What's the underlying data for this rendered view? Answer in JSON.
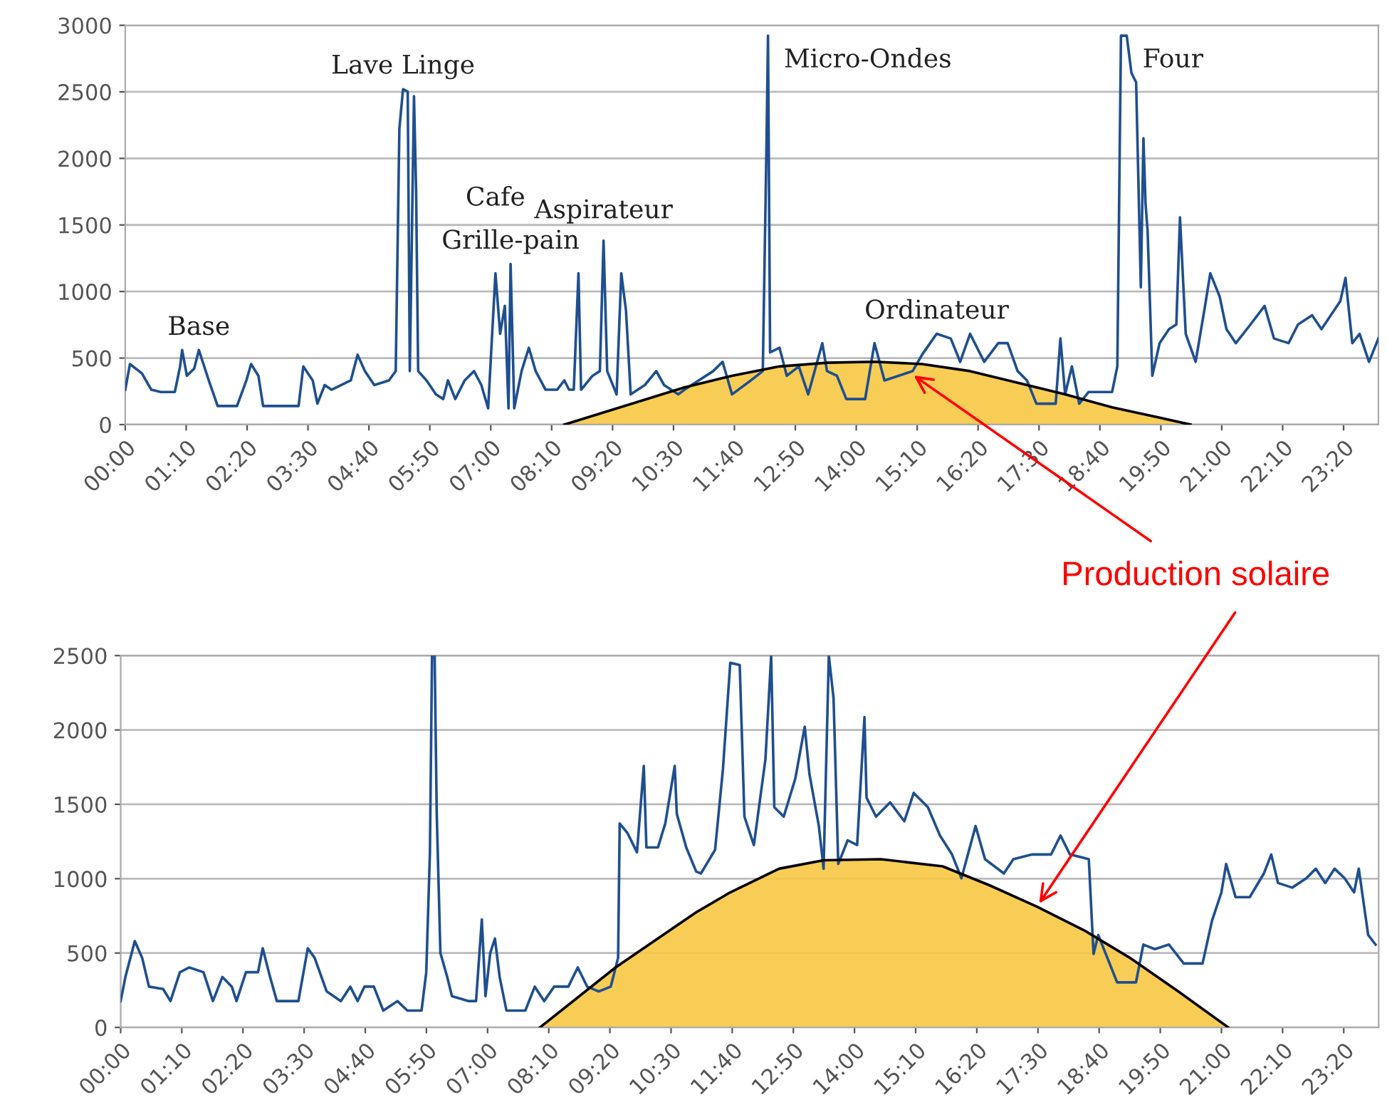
{
  "chart_data": [
    {
      "type": "line",
      "xlim": [
        0,
        24
      ],
      "ylim": [
        0,
        3000
      ],
      "yticks": [
        0,
        500,
        1000,
        1500,
        2000,
        2500,
        3000
      ],
      "xticks": [
        {
          "value": 0,
          "label": "00:00"
        },
        {
          "value": 1.1667,
          "label": "01:10"
        },
        {
          "value": 2.3333,
          "label": "02:20"
        },
        {
          "value": 3.5,
          "label": "03:30"
        },
        {
          "value": 4.6667,
          "label": "04:40"
        },
        {
          "value": 5.8333,
          "label": "05:50"
        },
        {
          "value": 7,
          "label": "07:00"
        },
        {
          "value": 8.1667,
          "label": "08:10"
        },
        {
          "value": 9.3333,
          "label": "09:20"
        },
        {
          "value": 10.5,
          "label": "10:30"
        },
        {
          "value": 11.6667,
          "label": "11:40"
        },
        {
          "value": 12.8333,
          "label": "12:50"
        },
        {
          "value": 14,
          "label": "14:00"
        },
        {
          "value": 15.1667,
          "label": "15:10"
        },
        {
          "value": 16.3333,
          "label": "16:20"
        },
        {
          "value": 17.5,
          "label": "17:30"
        },
        {
          "value": 18.6667,
          "label": "18:40"
        },
        {
          "value": 19.8333,
          "label": "19:50"
        },
        {
          "value": 21,
          "label": "21:00"
        },
        {
          "value": 22.1667,
          "label": "22:10"
        },
        {
          "value": 23.3333,
          "label": "23:20"
        }
      ],
      "grid": "y",
      "legend": false,
      "marker": "none",
      "line_style": "solid",
      "series": [
        {
          "type": "area",
          "color": "#f7c844",
          "x": [
            8.41,
            10.71,
            11.62,
            12.53,
            13.44,
            14.35,
            15.26,
            16.18,
            17.09,
            18.0,
            18.9,
            19.81,
            20.4
          ],
          "values": [
            0,
            280,
            367,
            437,
            465,
            472,
            455,
            402,
            315,
            227,
            130,
            52,
            0
          ]
        },
        {
          "color": "#1f4f8f",
          "x": [
            0,
            0.09,
            0.32,
            0.5,
            0.68,
            0.95,
            1.05,
            1.09,
            1.18,
            1.32,
            1.41,
            1.6,
            1.77,
            2.14,
            2.32,
            2.41,
            2.55,
            2.64,
            3.32,
            3.41,
            3.59,
            3.68,
            3.82,
            3.95,
            4.32,
            4.45,
            4.59,
            4.77,
            5.05,
            5.18,
            5.25,
            5.32,
            5.41,
            5.45,
            5.53,
            5.57,
            5.61,
            5.77,
            5.95,
            6.09,
            6.18,
            6.32,
            6.5,
            6.68,
            6.82,
            6.95,
            7.09,
            7.18,
            7.27,
            7.34,
            7.38,
            7.45,
            7.59,
            7.73,
            7.86,
            8.05,
            8.27,
            8.41,
            8.5,
            8.59,
            8.68,
            8.73,
            8.95,
            9.09,
            9.16,
            9.23,
            9.41,
            9.5,
            9.59,
            9.68,
            9.95,
            10.17,
            10.32,
            10.59,
            10.71,
            11.26,
            11.44,
            11.62,
            11.98,
            12.21,
            12.28,
            12.31,
            12.35,
            12.53,
            12.67,
            12.9,
            13.08,
            13.35,
            13.44,
            13.63,
            13.81,
            14.17,
            14.35,
            14.54,
            14.81,
            15.08,
            15.26,
            15.54,
            15.81,
            15.99,
            16.18,
            16.45,
            16.72,
            16.9,
            17.09,
            17.27,
            17.45,
            17.82,
            17.91,
            18.0,
            18.13,
            18.27,
            18.45,
            18.9,
            19.0,
            19.07,
            19.18,
            19.27,
            19.36,
            19.45,
            19.5,
            19.54,
            19.58,
            19.67,
            19.81,
            19.99,
            20.13,
            20.2,
            20.31,
            20.5,
            20.68,
            20.78,
            20.96,
            21.09,
            21.27,
            21.55,
            21.82,
            22.0,
            22.28,
            22.46,
            22.73,
            22.91,
            23.27,
            23.37,
            23.5,
            23.64,
            23.82,
            24.0
          ],
          "values": [
            262,
            455,
            385,
            262,
            245,
            245,
            437,
            560,
            367,
            420,
            560,
            332,
            140,
            140,
            332,
            455,
            367,
            140,
            140,
            437,
            332,
            157,
            297,
            262,
            332,
            525,
            402,
            297,
            332,
            402,
            2222,
            2520,
            2502,
            402,
            2467,
            1767,
            402,
            332,
            227,
            192,
            332,
            192,
            332,
            402,
            297,
            122,
            1137,
            682,
            892,
            122,
            1207,
            122,
            402,
            577,
            402,
            262,
            262,
            332,
            262,
            262,
            1137,
            262,
            367,
            402,
            1382,
            402,
            227,
            1137,
            857,
            227,
            297,
            402,
            297,
            227,
            262,
            402,
            472,
            227,
            332,
            402,
            2082,
            2922,
            542,
            577,
            367,
            437,
            227,
            612,
            402,
            367,
            192,
            192,
            612,
            332,
            367,
            402,
            525,
            682,
            647,
            472,
            682,
            472,
            612,
            612,
            402,
            332,
            157,
            157,
            647,
            227,
            437,
            157,
            245,
            245,
            437,
            2922,
            2922,
            2642,
            2572,
            1032,
            2152,
            1662,
            1452,
            367,
            612,
            717,
            752,
            1557,
            682,
            472,
            892,
            1137,
            962,
            717,
            612,
            752,
            892,
            647,
            612,
            752,
            822,
            717,
            927,
            1102,
            612,
            682,
            472,
            647
          ]
        }
      ],
      "annotations": [
        {
          "text": "Base",
          "x": 1.41,
          "y": 560
        },
        {
          "text": "Lave Linge",
          "x": 5.32,
          "y": 2520
        },
        {
          "text": "Grille-pain",
          "x": 7.38,
          "y": 1207
        },
        {
          "text": "Cafe",
          "x": 7.09,
          "y": 1137
        },
        {
          "text": "Aspirateur",
          "x": 9.16,
          "y": 1382
        },
        {
          "text": "Micro-Ondes",
          "x": 12.31,
          "y": 2922
        },
        {
          "text": "Ordinateur",
          "x": 15.54,
          "y": 682
        },
        {
          "text": "Four",
          "x": 19.18,
          "y": 2922
        },
        {
          "text": "Production solaire",
          "x": 15.04,
          "y": 386
        }
      ]
    },
    {
      "type": "line",
      "xlim": [
        0,
        24
      ],
      "ylim": [
        0,
        2500
      ],
      "yticks": [
        0,
        500,
        1000,
        1500,
        2000,
        2500
      ],
      "xticks": [
        {
          "value": 0,
          "label": "00:00"
        },
        {
          "value": 1.1667,
          "label": "01:10"
        },
        {
          "value": 2.3333,
          "label": "02:20"
        },
        {
          "value": 3.5,
          "label": "03:30"
        },
        {
          "value": 4.6667,
          "label": "04:40"
        },
        {
          "value": 5.8333,
          "label": "05:50"
        },
        {
          "value": 7,
          "label": "07:00"
        },
        {
          "value": 8.1667,
          "label": "08:10"
        },
        {
          "value": 9.3333,
          "label": "09:20"
        },
        {
          "value": 10.5,
          "label": "10:30"
        },
        {
          "value": 11.6667,
          "label": "11:40"
        },
        {
          "value": 12.8333,
          "label": "12:50"
        },
        {
          "value": 14,
          "label": "14:00"
        },
        {
          "value": 15.1667,
          "label": "15:10"
        },
        {
          "value": 16.3333,
          "label": "16:20"
        },
        {
          "value": 17.5,
          "label": "17:30"
        },
        {
          "value": 18.6667,
          "label": "18:40"
        },
        {
          "value": 19.8333,
          "label": "19:50"
        },
        {
          "value": 21,
          "label": "21:00"
        },
        {
          "value": 22.1667,
          "label": "22:10"
        },
        {
          "value": 23.3333,
          "label": "23:20"
        }
      ],
      "grid": "y",
      "legend": false,
      "marker": "none",
      "line_style": "solid",
      "series": [
        {
          "type": "area",
          "color": "#f7c844",
          "x": [
            8.0,
            9.44,
            10.98,
            11.63,
            12.56,
            13.41,
            14.5,
            15.68,
            16.58,
            17.48,
            18.38,
            19.28,
            20.19,
            21.13
          ],
          "values": [
            0,
            403,
            774,
            908,
            1067,
            1124,
            1131,
            1083,
            955,
            812,
            653,
            462,
            239,
            0
          ]
        },
        {
          "color": "#1f4f8f",
          "x": [
            0,
            0.09,
            0.27,
            0.41,
            0.54,
            0.81,
            0.95,
            1.13,
            1.31,
            1.58,
            1.76,
            1.94,
            2.12,
            2.21,
            2.39,
            2.62,
            2.71,
            2.85,
            2.98,
            3.39,
            3.57,
            3.7,
            3.93,
            4.2,
            4.38,
            4.52,
            4.65,
            4.83,
            5.01,
            5.28,
            5.47,
            5.74,
            5.83,
            5.9,
            5.94,
            5.99,
            6.03,
            6.1,
            6.23,
            6.32,
            6.64,
            6.78,
            6.89,
            6.96,
            7.05,
            7.14,
            7.23,
            7.36,
            7.72,
            7.9,
            8.08,
            8.27,
            8.54,
            8.72,
            8.9,
            9.12,
            9.35,
            9.49,
            9.52,
            9.67,
            9.85,
            9.98,
            10.03,
            10.25,
            10.39,
            10.57,
            10.61,
            10.79,
            10.98,
            11.07,
            11.34,
            11.49,
            11.63,
            11.81,
            11.9,
            12.08,
            12.3,
            12.41,
            12.47,
            12.65,
            12.87,
            13.05,
            13.14,
            13.32,
            13.41,
            13.51,
            13.6,
            13.69,
            13.87,
            14.05,
            14.19,
            14.23,
            14.41,
            14.68,
            14.95,
            15.13,
            15.4,
            15.63,
            15.86,
            16.04,
            16.31,
            16.49,
            16.85,
            17.03,
            17.39,
            17.75,
            17.93,
            18.11,
            18.47,
            18.56,
            18.65,
            18.83,
            19.01,
            19.37,
            19.51,
            19.73,
            20.0,
            20.28,
            20.64,
            20.82,
            21.0,
            21.09,
            21.27,
            21.54,
            21.81,
            21.95,
            22.08,
            22.35,
            22.62,
            22.8,
            22.98,
            23.16,
            23.35,
            23.53,
            23.62,
            23.8,
            23.94
          ],
          "values": [
            177,
            339,
            580,
            468,
            274,
            258,
            177,
            371,
            403,
            371,
            177,
            339,
            274,
            177,
            371,
            371,
            532,
            339,
            177,
            177,
            532,
            468,
            242,
            177,
            274,
            177,
            274,
            274,
            113,
            177,
            113,
            113,
            371,
            1177,
            2500,
            2500,
            1435,
            500,
            339,
            210,
            177,
            177,
            726,
            210,
            500,
            597,
            339,
            113,
            113,
            274,
            177,
            274,
            274,
            403,
            274,
            242,
            274,
            468,
            1371,
            1306,
            1177,
            1758,
            1210,
            1210,
            1371,
            1758,
            1435,
            1210,
            1048,
            1035,
            1194,
            1736,
            2452,
            2436,
            1417,
            1226,
            1800,
            2500,
            1481,
            1417,
            1672,
            2022,
            1704,
            1354,
            1067,
            2500,
            2214,
            1099,
            1258,
            1226,
            2086,
            1545,
            1417,
            1513,
            1386,
            1577,
            1481,
            1290,
            1163,
            1003,
            1354,
            1131,
            1035,
            1131,
            1163,
            1163,
            1290,
            1163,
            1131,
            494,
            621,
            462,
            303,
            303,
            557,
            526,
            557,
            430,
            430,
            717,
            908,
            1099,
            876,
            876,
            1035,
            1163,
            971,
            940,
            1003,
            1067,
            971,
            1067,
            1003,
            908,
            1067,
            621,
            557
          ]
        }
      ]
    }
  ]
}
